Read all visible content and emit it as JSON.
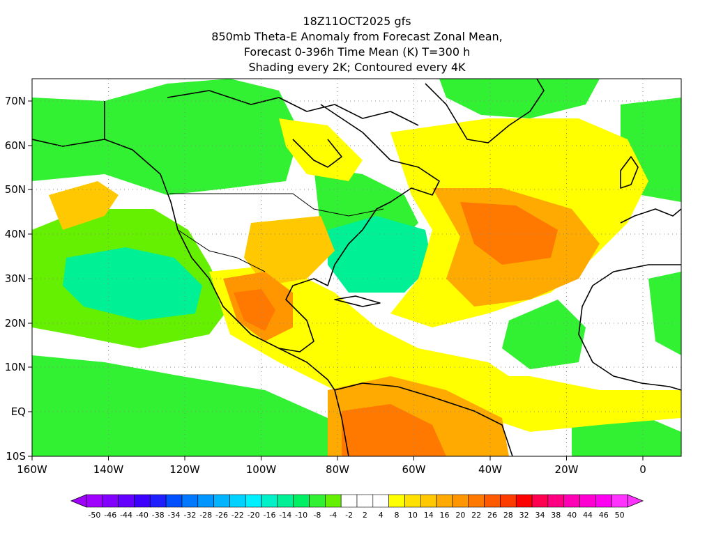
{
  "title": {
    "line1": "18Z11OCT2025 gfs",
    "line2": "850mb Theta-E Anomaly from Forecast Zonal Mean,",
    "line3": "Forecast 0-396h Time Mean (K) T=300 h",
    "line4": "Shading every 2K; Contoured every 4K"
  },
  "map": {
    "projection": "lat-lon",
    "lon_range": [
      -160,
      10
    ],
    "lat_range": [
      -10,
      75
    ],
    "x_ticks": [
      "160W",
      "140W",
      "120W",
      "100W",
      "80W",
      "60W",
      "40W",
      "20W",
      "0"
    ],
    "y_ticks": [
      "70N",
      "60N",
      "50N",
      "40N",
      "30N",
      "20N",
      "10N",
      "EQ",
      "10S"
    ],
    "grid": "dotted"
  },
  "colorbar": {
    "labels": [
      "-50",
      "-46",
      "-44",
      "-40",
      "-38",
      "-34",
      "-32",
      "-28",
      "-26",
      "-22",
      "-20",
      "-16",
      "-14",
      "-10",
      "-8",
      "-4",
      "-2",
      "2",
      "4",
      "8",
      "10",
      "14",
      "16",
      "20",
      "22",
      "26",
      "28",
      "32",
      "34",
      "38",
      "40",
      "44",
      "46",
      "50"
    ],
    "colors": [
      "#a000ff",
      "#8200ff",
      "#6400ff",
      "#3c00ff",
      "#1e1eff",
      "#0050ff",
      "#0078ff",
      "#0096ff",
      "#00b4ff",
      "#00d2ff",
      "#00f0ff",
      "#00f0c8",
      "#00f096",
      "#00f064",
      "#32f032",
      "#64f000",
      "#ffffff",
      "#ffffff",
      "#ffffff",
      "#ffff00",
      "#ffe100",
      "#ffc800",
      "#ffaa00",
      "#ff9600",
      "#ff7800",
      "#ff5a00",
      "#ff3c00",
      "#ff0000",
      "#ff0050",
      "#ff0082",
      "#ff00b4",
      "#ff00d2",
      "#ff00f0",
      "#ff32ff"
    ]
  },
  "palette": {
    "green": "#32f032",
    "cyan_green": "#00f096",
    "yellow": "#ffff00",
    "gold": "#ffc800",
    "orange": "#ff9600",
    "red_orange": "#ff5a00"
  }
}
